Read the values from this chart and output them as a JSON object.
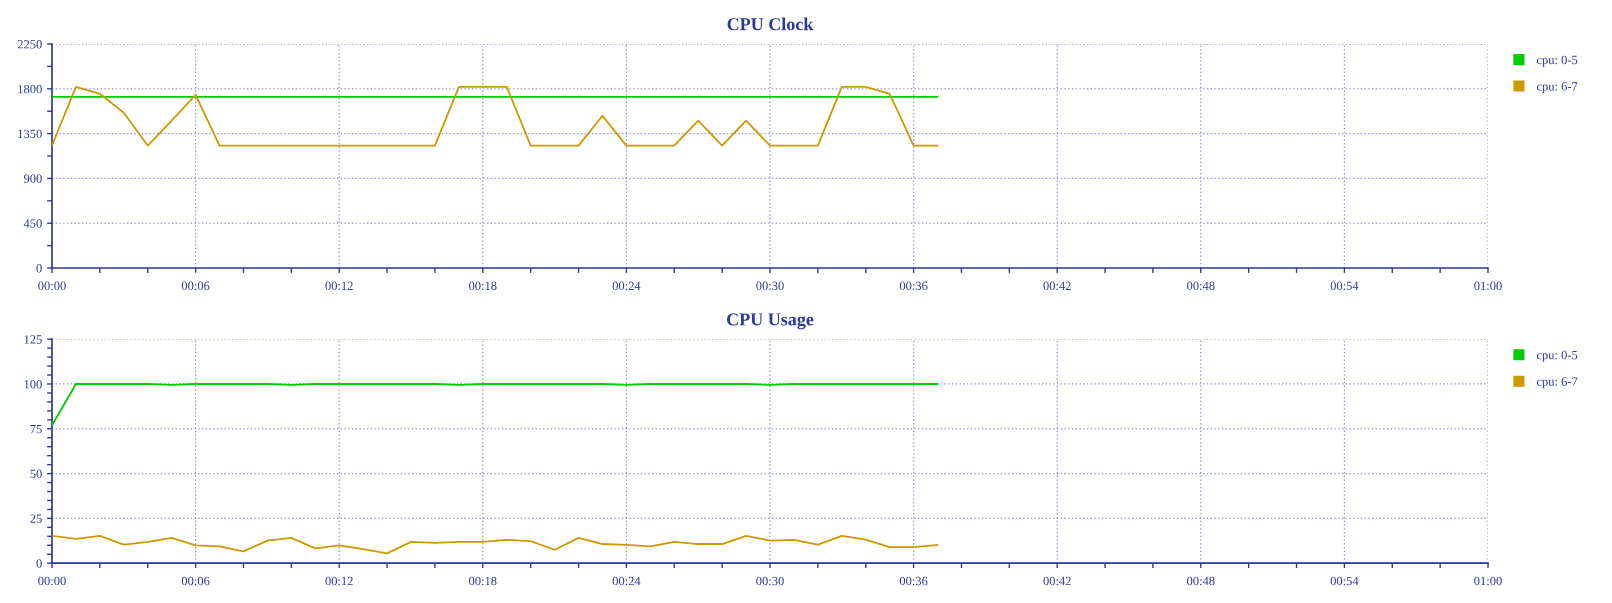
{
  "chart_data": [
    {
      "type": "line",
      "title": "CPU Clock",
      "x": [
        0,
        1,
        2,
        3,
        4,
        5,
        6,
        7,
        8,
        9,
        10,
        11,
        12,
        13,
        14,
        15,
        16,
        17,
        18,
        19,
        20,
        21,
        22,
        23,
        24,
        25,
        26,
        27,
        28,
        29,
        30,
        31,
        32,
        33,
        34,
        35,
        36,
        37
      ],
      "series": [
        {
          "name": "cpu: 0-5",
          "color": "#00cc00",
          "values": [
            1720,
            1720,
            1720,
            1720,
            1720,
            1720,
            1720,
            1720,
            1720,
            1720,
            1720,
            1720,
            1720,
            1720,
            1720,
            1720,
            1720,
            1720,
            1720,
            1720,
            1720,
            1720,
            1720,
            1720,
            1720,
            1720,
            1720,
            1720,
            1720,
            1720,
            1720,
            1720,
            1720,
            1720,
            1720,
            1720,
            1720,
            1720
          ]
        },
        {
          "name": "cpu: 6-7",
          "color": "#cc9900",
          "values": [
            1230,
            1820,
            1750,
            1560,
            1230,
            1480,
            1740,
            1230,
            1230,
            1230,
            1230,
            1230,
            1230,
            1230,
            1230,
            1230,
            1230,
            1820,
            1820,
            1820,
            1230,
            1230,
            1230,
            1530,
            1230,
            1230,
            1230,
            1480,
            1230,
            1480,
            1230,
            1230,
            1230,
            1820,
            1820,
            1750,
            1230,
            1230
          ]
        }
      ],
      "xlim": [
        0,
        60
      ],
      "xticks": [
        {
          "value": 0,
          "label": "00:00"
        },
        {
          "value": 2,
          "label": null
        },
        {
          "value": 4,
          "label": null
        },
        {
          "value": 6,
          "label": "00:06"
        },
        {
          "value": 8,
          "label": null
        },
        {
          "value": 10,
          "label": null
        },
        {
          "value": 12,
          "label": "00:12"
        },
        {
          "value": 14,
          "label": null
        },
        {
          "value": 16,
          "label": null
        },
        {
          "value": 18,
          "label": "00:18"
        },
        {
          "value": 20,
          "label": null
        },
        {
          "value": 22,
          "label": null
        },
        {
          "value": 24,
          "label": "00:24"
        },
        {
          "value": 26,
          "label": null
        },
        {
          "value": 28,
          "label": null
        },
        {
          "value": 30,
          "label": "00:30"
        },
        {
          "value": 32,
          "label": null
        },
        {
          "value": 34,
          "label": null
        },
        {
          "value": 36,
          "label": "00:36"
        },
        {
          "value": 38,
          "label": null
        },
        {
          "value": 40,
          "label": null
        },
        {
          "value": 42,
          "label": "00:42"
        },
        {
          "value": 44,
          "label": null
        },
        {
          "value": 46,
          "label": null
        },
        {
          "value": 48,
          "label": "00:48"
        },
        {
          "value": 50,
          "label": null
        },
        {
          "value": 52,
          "label": null
        },
        {
          "value": 54,
          "label": "00:54"
        },
        {
          "value": 56,
          "label": null
        },
        {
          "value": 58,
          "label": null
        },
        {
          "value": 60,
          "label": "01:00"
        }
      ],
      "ylim": [
        0,
        2250
      ],
      "yticks": [
        0,
        {
          "value": 225,
          "label": null
        },
        450,
        {
          "value": 675,
          "label": null
        },
        900,
        {
          "value": 1125,
          "label": null
        },
        1350,
        {
          "value": 1575,
          "label": null
        },
        1800,
        {
          "value": 2025,
          "label": null
        },
        2250
      ],
      "grid": true,
      "legend": "top right",
      "marker": "none",
      "line_style": "solid"
    },
    {
      "type": "line",
      "title": "CPU Usage",
      "x": [
        0,
        1,
        2,
        3,
        4,
        5,
        6,
        7,
        8,
        9,
        10,
        11,
        12,
        13,
        14,
        15,
        16,
        17,
        18,
        19,
        20,
        21,
        22,
        23,
        24,
        25,
        26,
        27,
        28,
        29,
        30,
        31,
        32,
        33,
        34,
        35,
        36,
        37
      ],
      "series": [
        {
          "name": "cpu: 0-5",
          "color": "#00cc00",
          "values": [
            77,
            100,
            100,
            100,
            100,
            99.5,
            100,
            100,
            100,
            100,
            99.5,
            100,
            100,
            100,
            100,
            100,
            100,
            99.5,
            100,
            100,
            100,
            100,
            100,
            100,
            99.5,
            100,
            100,
            100,
            100,
            100,
            99.5,
            100,
            100,
            100,
            100,
            100,
            100,
            100
          ]
        },
        {
          "name": "cpu: 6-7",
          "color": "#cc9900",
          "values": [
            15.3,
            13.6,
            15.3,
            10.4,
            11.9,
            14.1,
            10,
            9.4,
            6.6,
            12.6,
            14.1,
            8.3,
            10,
            7.9,
            5.5,
            11.9,
            11.3,
            11.9,
            11.9,
            13,
            12.3,
            7.5,
            14.1,
            10.7,
            10.2,
            9.4,
            11.9,
            10.7,
            10.7,
            15.3,
            12.6,
            13,
            10.4,
            15.3,
            13.2,
            9,
            9,
            10.2
          ]
        }
      ],
      "xlim": [
        0,
        60
      ],
      "xticks": [
        {
          "value": 0,
          "label": "00:00"
        },
        {
          "value": 2,
          "label": null
        },
        {
          "value": 4,
          "label": null
        },
        {
          "value": 6,
          "label": "00:06"
        },
        {
          "value": 8,
          "label": null
        },
        {
          "value": 10,
          "label": null
        },
        {
          "value": 12,
          "label": "00:12"
        },
        {
          "value": 14,
          "label": null
        },
        {
          "value": 16,
          "label": null
        },
        {
          "value": 18,
          "label": "00:18"
        },
        {
          "value": 20,
          "label": null
        },
        {
          "value": 22,
          "label": null
        },
        {
          "value": 24,
          "label": "00:24"
        },
        {
          "value": 26,
          "label": null
        },
        {
          "value": 28,
          "label": null
        },
        {
          "value": 30,
          "label": "00:30"
        },
        {
          "value": 32,
          "label": null
        },
        {
          "value": 34,
          "label": null
        },
        {
          "value": 36,
          "label": "00:36"
        },
        {
          "value": 38,
          "label": null
        },
        {
          "value": 40,
          "label": null
        },
        {
          "value": 42,
          "label": "00:42"
        },
        {
          "value": 44,
          "label": null
        },
        {
          "value": 46,
          "label": null
        },
        {
          "value": 48,
          "label": "00:48"
        },
        {
          "value": 50,
          "label": null
        },
        {
          "value": 52,
          "label": null
        },
        {
          "value": 54,
          "label": "00:54"
        },
        {
          "value": 56,
          "label": null
        },
        {
          "value": 58,
          "label": null
        },
        {
          "value": 60,
          "label": "01:00"
        }
      ],
      "ylim": [
        0,
        125
      ],
      "yticks": [
        0,
        {
          "value": 5,
          "label": null
        },
        {
          "value": 10,
          "label": null
        },
        {
          "value": 15,
          "label": null
        },
        {
          "value": 20,
          "label": null
        },
        25,
        {
          "value": 30,
          "label": null
        },
        {
          "value": 35,
          "label": null
        },
        {
          "value": 40,
          "label": null
        },
        {
          "value": 45,
          "label": null
        },
        50,
        {
          "value": 55,
          "label": null
        },
        {
          "value": 60,
          "label": null
        },
        {
          "value": 65,
          "label": null
        },
        {
          "value": 70,
          "label": null
        },
        75,
        {
          "value": 80,
          "label": null
        },
        {
          "value": 85,
          "label": null
        },
        {
          "value": 90,
          "label": null
        },
        {
          "value": 95,
          "label": null
        },
        100,
        {
          "value": 105,
          "label": null
        },
        {
          "value": 110,
          "label": null
        },
        {
          "value": 115,
          "label": null
        },
        {
          "value": 120,
          "label": null
        },
        125
      ],
      "grid": true,
      "legend": "top right",
      "marker": "none",
      "line_style": "solid"
    }
  ]
}
